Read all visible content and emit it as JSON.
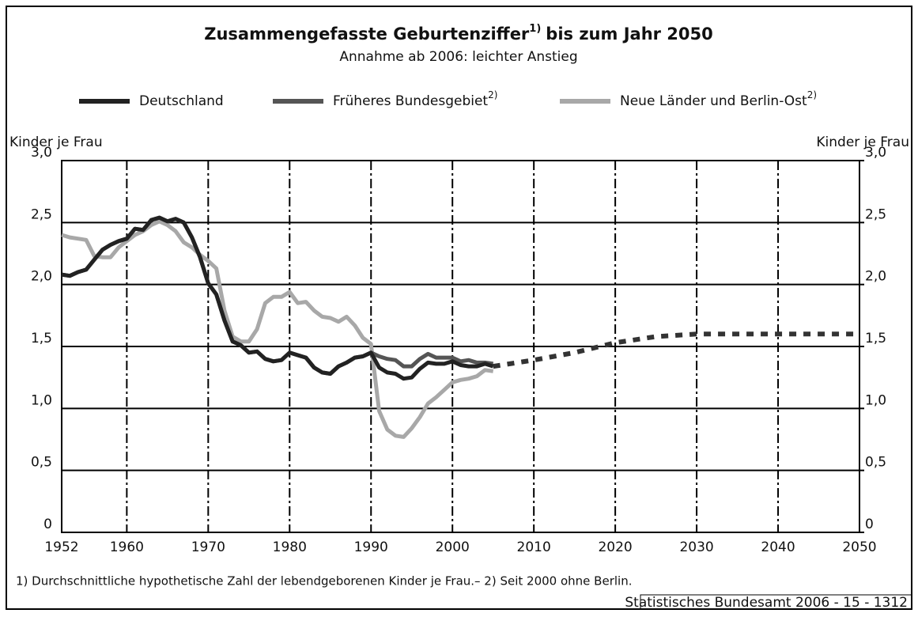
{
  "chart_data": {
    "type": "line",
    "title": "Zusammengefasste Geburtenziffer",
    "title_note": "1)",
    "title_end": "bis zum Jahr 2050",
    "subtitle": "Annahme ab 2006: leichter Anstieg",
    "ylabel": "Kinder je Frau",
    "y2label": "Kinder je Frau",
    "footnote": "1) Durchschnittliche hypothetische Zahl der lebendgeborenen Kinder je Frau.– 2) Seit 2000 ohne Berlin.",
    "source": "Statistisches Bundesamt 2006 - 15 - 1312",
    "xlim": [
      1952,
      2050
    ],
    "xticks": [
      1952,
      1960,
      1970,
      1980,
      1990,
      2000,
      2010,
      2020,
      2030,
      2040,
      2050
    ],
    "ylim": [
      0,
      3
    ],
    "yticks": [
      0,
      {
        "value": 0.5,
        "label": "0,5"
      },
      {
        "value": 1,
        "label": "1,0"
      },
      {
        "value": 1.5,
        "label": "1,5"
      },
      {
        "value": 2,
        "label": "2,0"
      },
      {
        "value": 2.5,
        "label": "2,5"
      },
      {
        "value": 3,
        "label": "3,0"
      }
    ],
    "y2lim": [
      0,
      3
    ],
    "y2ticks": [
      0,
      {
        "value": 0.5,
        "label": "0,5"
      },
      {
        "value": 1,
        "label": "1,0"
      },
      {
        "value": 1.5,
        "label": "1,5"
      },
      {
        "value": 2,
        "label": "2,0"
      },
      {
        "value": 2.5,
        "label": "2,5"
      },
      {
        "value": 3,
        "label": "3,0"
      }
    ],
    "grid": true,
    "series": [
      {
        "name": "Neue Länder und Berlin-Ost",
        "name_note": "2)",
        "color": "#a8a8a8",
        "x": [
          1952,
          1953,
          1954,
          1955,
          1956,
          1957,
          1958,
          1959,
          1960,
          1961,
          1962,
          1963,
          1964,
          1965,
          1966,
          1967,
          1968,
          1969,
          1970,
          1971,
          1972,
          1973,
          1974,
          1975,
          1976,
          1977,
          1978,
          1979,
          1980,
          1981,
          1982,
          1983,
          1984,
          1985,
          1986,
          1987,
          1988,
          1989,
          1990,
          1991,
          1992,
          1993,
          1994,
          1995,
          1996,
          1997,
          1998,
          1999,
          2000,
          2001,
          2002,
          2003,
          2004,
          2005
        ],
        "values": [
          2.4,
          2.38,
          2.37,
          2.36,
          2.23,
          2.22,
          2.22,
          2.3,
          2.35,
          2.4,
          2.43,
          2.48,
          2.51,
          2.48,
          2.43,
          2.34,
          2.3,
          2.24,
          2.19,
          2.13,
          1.79,
          1.58,
          1.54,
          1.54,
          1.64,
          1.85,
          1.9,
          1.9,
          1.94,
          1.85,
          1.86,
          1.79,
          1.74,
          1.73,
          1.7,
          1.74,
          1.67,
          1.57,
          1.52,
          0.98,
          0.83,
          0.78,
          0.77,
          0.84,
          0.93,
          1.04,
          1.09,
          1.15,
          1.21,
          1.23,
          1.24,
          1.26,
          1.31,
          1.3
        ]
      },
      {
        "name": "Früheres Bundesgebiet",
        "name_note": "2)",
        "color": "#555555",
        "x": [
          1952,
          1953,
          1954,
          1955,
          1956,
          1957,
          1958,
          1959,
          1960,
          1961,
          1962,
          1963,
          1964,
          1965,
          1966,
          1967,
          1968,
          1969,
          1970,
          1971,
          1972,
          1973,
          1974,
          1975,
          1976,
          1977,
          1978,
          1979,
          1980,
          1981,
          1982,
          1983,
          1984,
          1985,
          1986,
          1987,
          1988,
          1989,
          1990,
          1991,
          1992,
          1993,
          1994,
          1995,
          1996,
          1997,
          1998,
          1999,
          2000,
          2001,
          2002,
          2003,
          2004,
          2005
        ],
        "values": [
          2.08,
          2.07,
          2.1,
          2.12,
          2.2,
          2.28,
          2.32,
          2.35,
          2.37,
          2.45,
          2.44,
          2.52,
          2.54,
          2.51,
          2.53,
          2.5,
          2.38,
          2.22,
          2.01,
          1.92,
          1.71,
          1.54,
          1.51,
          1.45,
          1.46,
          1.4,
          1.38,
          1.39,
          1.45,
          1.43,
          1.41,
          1.33,
          1.29,
          1.28,
          1.34,
          1.37,
          1.41,
          1.42,
          1.45,
          1.42,
          1.4,
          1.39,
          1.34,
          1.34,
          1.4,
          1.44,
          1.41,
          1.41,
          1.41,
          1.38,
          1.39,
          1.37,
          1.37,
          1.36
        ]
      },
      {
        "name": "Deutschland",
        "color": "#222222",
        "x": [
          1952,
          1953,
          1954,
          1955,
          1956,
          1957,
          1958,
          1959,
          1960,
          1961,
          1962,
          1963,
          1964,
          1965,
          1966,
          1967,
          1968,
          1969,
          1970,
          1971,
          1972,
          1973,
          1974,
          1975,
          1976,
          1977,
          1978,
          1979,
          1980,
          1981,
          1982,
          1983,
          1984,
          1985,
          1986,
          1987,
          1988,
          1989,
          1990,
          1991,
          1992,
          1993,
          1994,
          1995,
          1996,
          1997,
          1998,
          1999,
          2000,
          2001,
          2002,
          2003,
          2004,
          2005
        ],
        "values": [
          2.08,
          2.07,
          2.1,
          2.12,
          2.2,
          2.28,
          2.32,
          2.35,
          2.37,
          2.45,
          2.44,
          2.52,
          2.54,
          2.51,
          2.53,
          2.5,
          2.38,
          2.22,
          2.01,
          1.92,
          1.71,
          1.54,
          1.51,
          1.45,
          1.46,
          1.4,
          1.38,
          1.39,
          1.45,
          1.43,
          1.41,
          1.33,
          1.29,
          1.28,
          1.34,
          1.37,
          1.41,
          1.42,
          1.45,
          1.33,
          1.29,
          1.28,
          1.24,
          1.25,
          1.32,
          1.37,
          1.36,
          1.36,
          1.38,
          1.35,
          1.34,
          1.34,
          1.36,
          1.34
        ]
      },
      {
        "color": "#333333",
        "dash": true,
        "x": [
          2005,
          2010,
          2015,
          2020,
          2025,
          2030,
          2035,
          2040,
          2045,
          2050
        ],
        "values": [
          1.34,
          1.39,
          1.45,
          1.53,
          1.58,
          1.6,
          1.6,
          1.6,
          1.6,
          1.6
        ]
      }
    ]
  }
}
